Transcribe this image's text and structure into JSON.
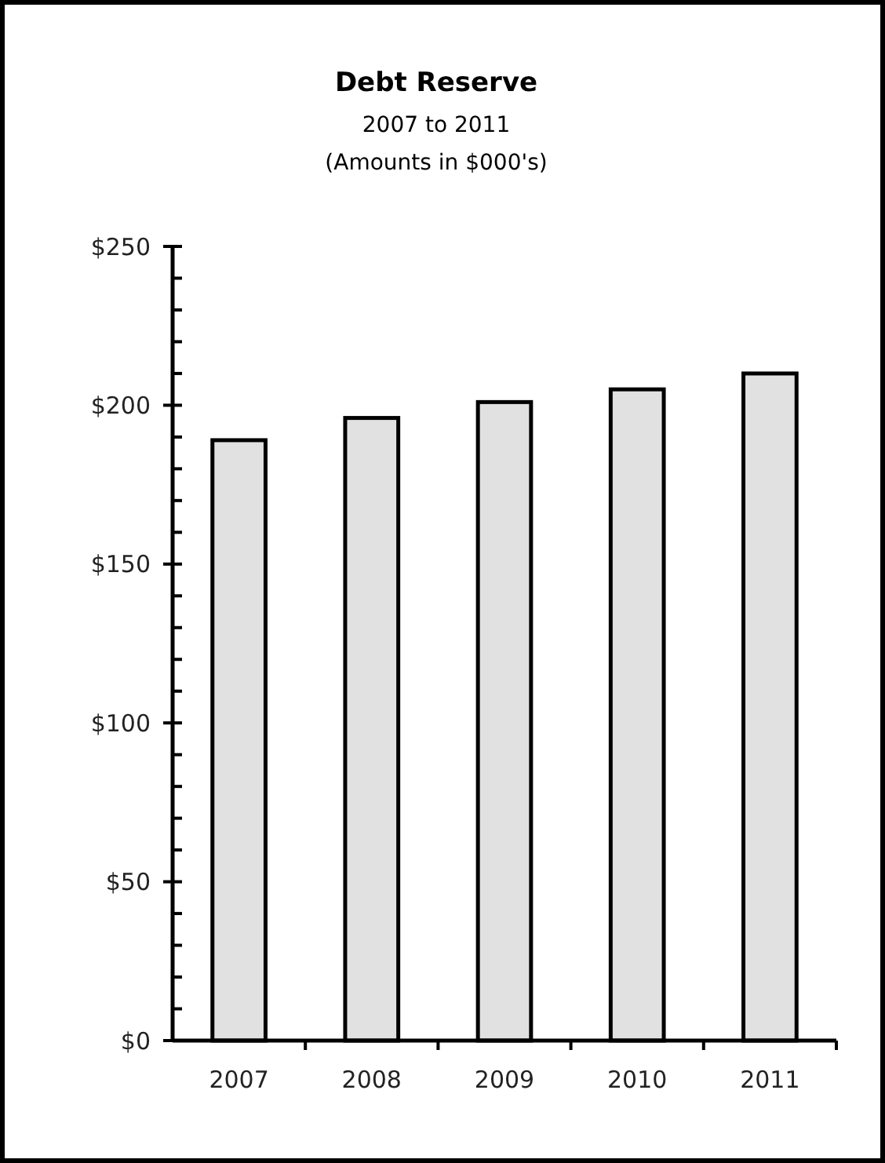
{
  "chart_data": {
    "type": "bar",
    "title": "Debt Reserve",
    "subtitle": "2007 to 2011\n(Amounts in $000's)",
    "categories": [
      "2007",
      "2008",
      "2009",
      "2010",
      "2011"
    ],
    "values": [
      189,
      196,
      201,
      205,
      210
    ],
    "color": "#e1e1e1",
    "ylim": [
      0,
      250
    ],
    "yticks": [
      {
        "value": 0,
        "label": "$0"
      },
      {
        "value": 10,
        "label": null
      },
      {
        "value": 20,
        "label": null
      },
      {
        "value": 30,
        "label": null
      },
      {
        "value": 40,
        "label": null
      },
      {
        "value": 50,
        "label": "$50"
      },
      {
        "value": 60,
        "label": null
      },
      {
        "value": 70,
        "label": null
      },
      {
        "value": 80,
        "label": null
      },
      {
        "value": 90,
        "label": null
      },
      {
        "value": 100,
        "label": "$100"
      },
      {
        "value": 110,
        "label": null
      },
      {
        "value": 120,
        "label": null
      },
      {
        "value": 130,
        "label": null
      },
      {
        "value": 140,
        "label": null
      },
      {
        "value": 150,
        "label": "$150"
      },
      {
        "value": 160,
        "label": null
      },
      {
        "value": 170,
        "label": null
      },
      {
        "value": 180,
        "label": null
      },
      {
        "value": 190,
        "label": null
      },
      {
        "value": 200,
        "label": "$200"
      },
      {
        "value": 210,
        "label": null
      },
      {
        "value": 220,
        "label": null
      },
      {
        "value": 230,
        "label": null
      },
      {
        "value": 240,
        "label": null
      },
      {
        "value": 250,
        "label": "$250"
      }
    ],
    "grid": false
  }
}
